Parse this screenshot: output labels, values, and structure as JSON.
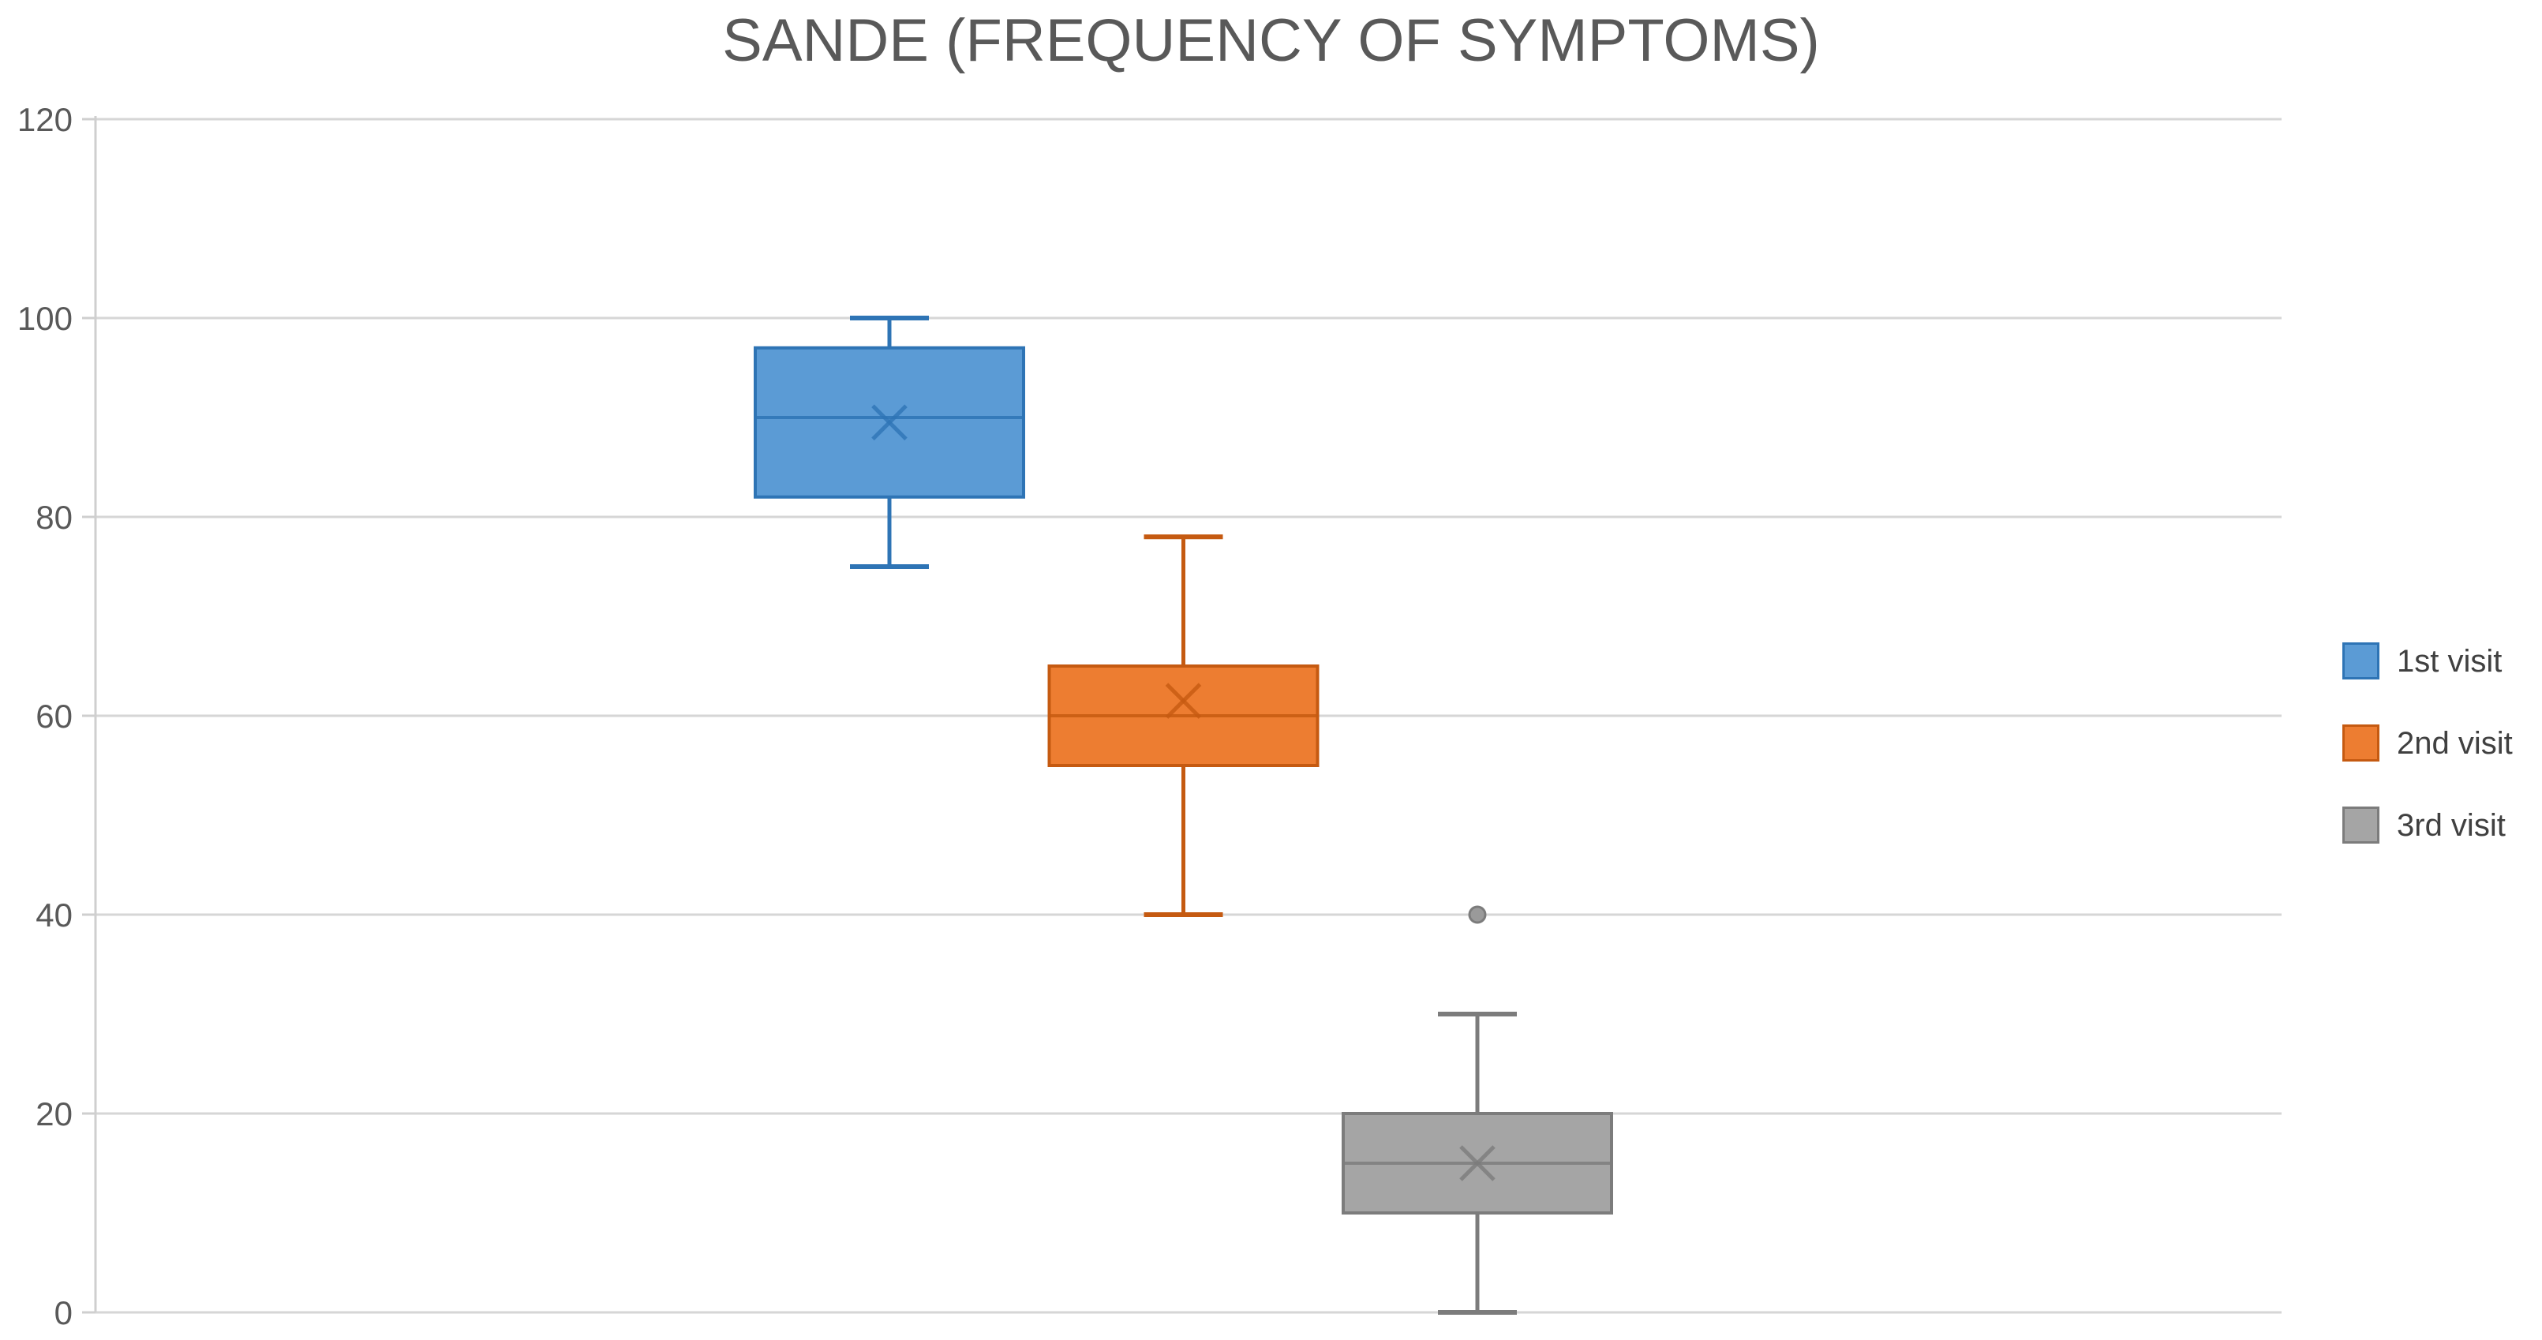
{
  "title": "SANDE (FREQUENCY OF SYMPTOMS)",
  "colors": {
    "background": "#FFFFFF",
    "gridline": "#D6D6D6",
    "axis_line": "#CFCFCF",
    "title_text": "#595959",
    "tick_text": "#595959",
    "legend_text": "#404040"
  },
  "chart_data": {
    "type": "box",
    "title": "SANDE (FREQUENCY OF SYMPTOMS)",
    "xlabel": "",
    "ylabel": "",
    "ylim": [
      0,
      120
    ],
    "yticks": [
      0,
      20,
      40,
      60,
      80,
      100,
      120
    ],
    "grid": true,
    "legend_position": "right",
    "categories": [
      "1st visit",
      "2nd visit",
      "3rd visit"
    ],
    "series": [
      {
        "name": "1st visit",
        "min": 75,
        "q1": 82,
        "median": 90,
        "q3": 97,
        "max": 100,
        "mean": 89.5,
        "outliers": [],
        "fill_color": "#5B9BD5",
        "line_color": "#2E74B5"
      },
      {
        "name": "2nd visit",
        "min": 40,
        "q1": 55,
        "median": 60,
        "q3": 65,
        "max": 78,
        "mean": 61.5,
        "outliers": [],
        "fill_color": "#ED7D31",
        "line_color": "#C55A11"
      },
      {
        "name": "3rd visit",
        "min": 0,
        "q1": 10,
        "median": 15,
        "q3": 20,
        "max": 30,
        "mean": 15,
        "outliers": [
          40
        ],
        "fill_color": "#A5A5A5",
        "line_color": "#7C7C7C"
      }
    ]
  }
}
